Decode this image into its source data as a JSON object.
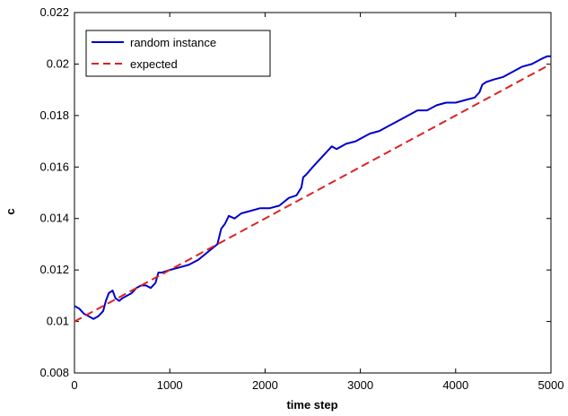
{
  "chart_data": {
    "type": "line",
    "xlabel": "time step",
    "ylabel": "c",
    "xlim": [
      0,
      5000
    ],
    "ylim": [
      0.008,
      0.022
    ],
    "xticks": [
      "0",
      "1000",
      "2000",
      "3000",
      "4000",
      "5000"
    ],
    "yticks": [
      "0.008",
      "0.01",
      "0.012",
      "0.014",
      "0.016",
      "0.018",
      "0.02",
      "0.022"
    ],
    "grid": false,
    "legend_position": "top-left",
    "series": [
      {
        "name": "random instance",
        "color": "#0000cc",
        "style": "solid",
        "x": [
          0,
          50,
          100,
          150,
          200,
          250,
          300,
          330,
          360,
          400,
          430,
          470,
          500,
          550,
          600,
          650,
          700,
          750,
          800,
          850,
          880,
          920,
          1000,
          1100,
          1200,
          1300,
          1400,
          1500,
          1540,
          1580,
          1620,
          1680,
          1750,
          1850,
          1950,
          2050,
          2150,
          2250,
          2330,
          2380,
          2400,
          2430,
          2500,
          2600,
          2700,
          2750,
          2850,
          2950,
          3000,
          3100,
          3200,
          3300,
          3400,
          3500,
          3600,
          3700,
          3800,
          3900,
          4000,
          4100,
          4200,
          4250,
          4280,
          4320,
          4400,
          4500,
          4600,
          4700,
          4800,
          4900,
          4960,
          5000
        ],
        "values": [
          0.0106,
          0.0105,
          0.0103,
          0.0102,
          0.0101,
          0.0102,
          0.0104,
          0.0108,
          0.0111,
          0.0112,
          0.0109,
          0.0108,
          0.0109,
          0.011,
          0.0111,
          0.0113,
          0.0114,
          0.0114,
          0.0113,
          0.0115,
          0.0119,
          0.0119,
          0.012,
          0.0121,
          0.0122,
          0.0124,
          0.0127,
          0.013,
          0.0136,
          0.0138,
          0.0141,
          0.014,
          0.0142,
          0.0143,
          0.0144,
          0.0144,
          0.0145,
          0.0148,
          0.0149,
          0.0152,
          0.0156,
          0.0157,
          0.016,
          0.0164,
          0.0168,
          0.0167,
          0.0169,
          0.017,
          0.0171,
          0.0173,
          0.0174,
          0.0176,
          0.0178,
          0.018,
          0.0182,
          0.0182,
          0.0184,
          0.0185,
          0.0185,
          0.0186,
          0.0187,
          0.0189,
          0.0192,
          0.0193,
          0.0194,
          0.0195,
          0.0197,
          0.0199,
          0.02,
          0.0202,
          0.0203,
          0.0203
        ]
      },
      {
        "name": "expected",
        "color": "#dd2222",
        "style": "dashed",
        "x": [
          0,
          5000
        ],
        "values": [
          0.01,
          0.02
        ]
      }
    ]
  }
}
